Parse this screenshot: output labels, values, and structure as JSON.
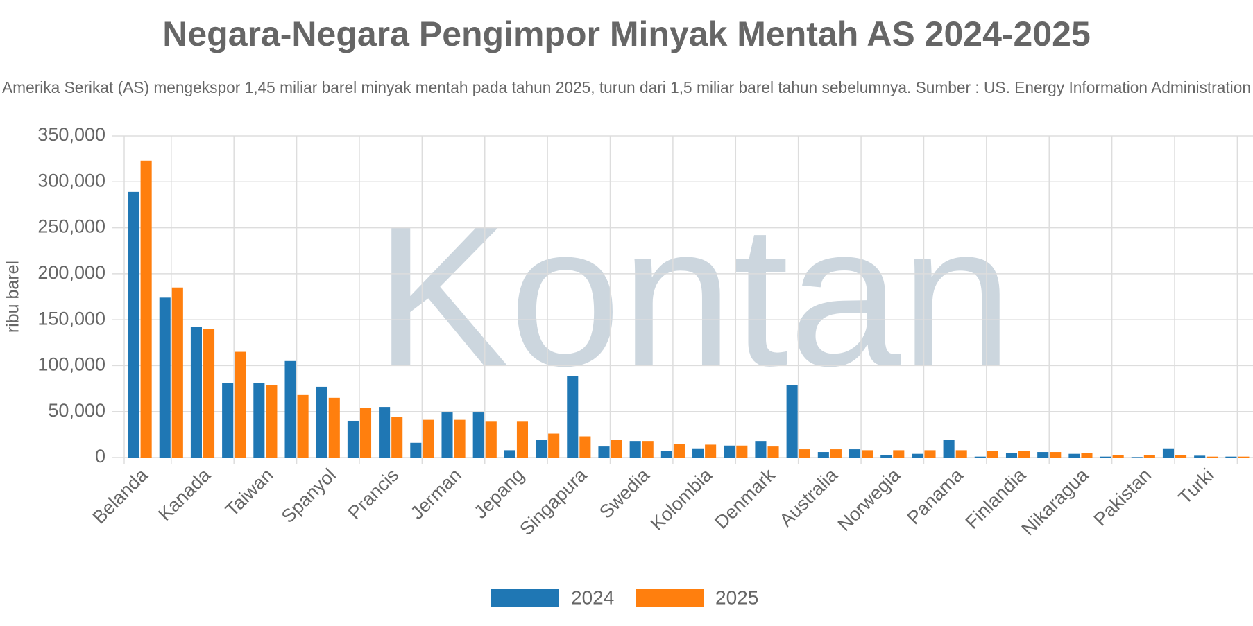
{
  "chart_data": {
    "type": "bar",
    "title": "Negara-Negara Pengimpor Minyak Mentah AS 2024-2025",
    "subtitle": "Amerika Serikat (AS) mengekspor 1,45 miliar barel minyak mentah pada tahun 2025, turun dari 1,5 miliar barel tahun sebelumnya. Sumber : US. Energy Information Administration",
    "watermark": "Kontan",
    "y_label": "ribu barel",
    "categories": [
      "Belanda",
      null,
      "Kanada",
      null,
      "Taiwan",
      null,
      "Spanyol",
      null,
      "Prancis",
      null,
      "Jerman",
      null,
      "Jepang",
      null,
      "Singapura",
      null,
      "Swedia",
      null,
      "Kolombia",
      null,
      "Denmark",
      null,
      "Australia",
      null,
      "Norwegia",
      null,
      "Panama",
      null,
      "Finlandia",
      null,
      "Nikaragua",
      null,
      "Pakistan",
      null,
      "Turki",
      null
    ],
    "series": [
      {
        "name": "2024",
        "color": "#1f77b4",
        "values": [
          289000,
          174000,
          142000,
          81000,
          81000,
          105000,
          77000,
          40000,
          55000,
          16000,
          49000,
          49000,
          8000,
          19000,
          89000,
          12000,
          18000,
          7000,
          10000,
          13000,
          18000,
          79000,
          6000,
          9000,
          3000,
          4000,
          19000,
          1000,
          5000,
          6000,
          4000,
          1000,
          500,
          10000,
          2000,
          1000
        ]
      },
      {
        "name": "2025",
        "color": "#ff7f0e",
        "values": [
          323000,
          185000,
          140000,
          115000,
          79000,
          68000,
          65000,
          54000,
          44000,
          41000,
          41000,
          39000,
          39000,
          26000,
          23000,
          19000,
          18000,
          15000,
          14000,
          13000,
          12000,
          9000,
          9000,
          8000,
          8000,
          8000,
          8000,
          7000,
          7000,
          6000,
          5000,
          3000,
          3000,
          3000,
          1000,
          1000
        ]
      }
    ],
    "ylim": [
      0,
      350000
    ],
    "yticks": [
      0,
      {
        "value": 50000,
        "label": "50,000"
      },
      {
        "value": 100000,
        "label": "100,000"
      },
      {
        "value": 150000,
        "label": "150,000"
      },
      {
        "value": 200000,
        "label": "200,000"
      },
      {
        "value": 250000,
        "label": "250,000"
      },
      {
        "value": 300000,
        "label": "300,000"
      },
      {
        "value": 350000,
        "label": "350,000"
      }
    ],
    "grid": true,
    "legend": "bottom"
  }
}
